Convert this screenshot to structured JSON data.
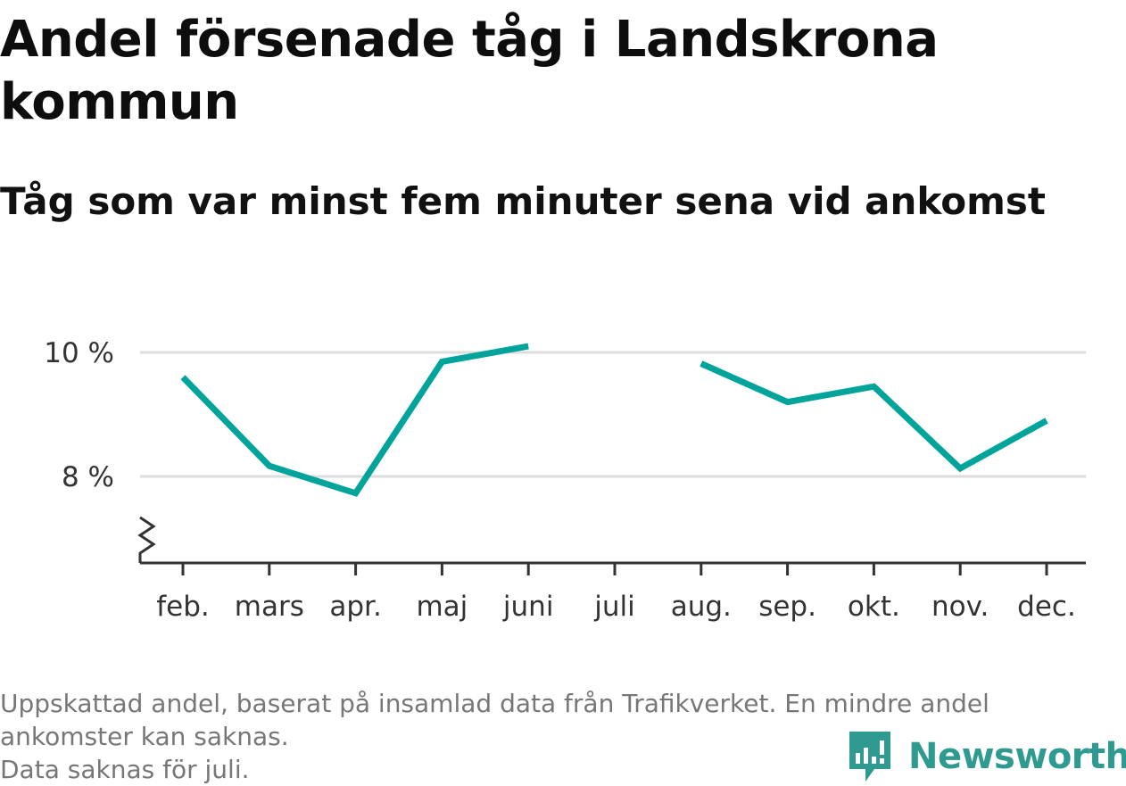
{
  "header": {
    "title": "Andel försenade tåg i Landskrona kommun",
    "subtitle": "Tåg som var minst fem minuter sena vid ankomst"
  },
  "footer": {
    "note_line1": "Uppskattad andel, baserat på insamlad data från Trafikverket. En mindre andel ankomster kan saknas.",
    "note_line2": "Data saknas för juli.",
    "brand": "Newsworthy"
  },
  "colors": {
    "line": "#00a49a",
    "grid": "#dddddd",
    "axis": "#333333",
    "brand": "#2f9a90"
  },
  "icons": {
    "logo": "bar-chart-bubble-icon",
    "axis_break": "zigzag-break-icon"
  },
  "chart_data": {
    "type": "line",
    "categories": [
      "feb.",
      "mars",
      "apr.",
      "maj",
      "juni",
      "juli",
      "aug.",
      "sep.",
      "okt.",
      "nov.",
      "dec."
    ],
    "series": [
      {
        "values": [
          9.6,
          8.17,
          7.73,
          9.85,
          10.1,
          null,
          9.82,
          9.2,
          9.45,
          8.13,
          8.9
        ]
      }
    ],
    "y_ticks": [
      {
        "value": 8,
        "label": "8 %"
      },
      {
        "value": 10,
        "label": "10 %"
      }
    ],
    "ylim": [
      6.6,
      10.4
    ],
    "grid": true,
    "axis_break": true
  }
}
